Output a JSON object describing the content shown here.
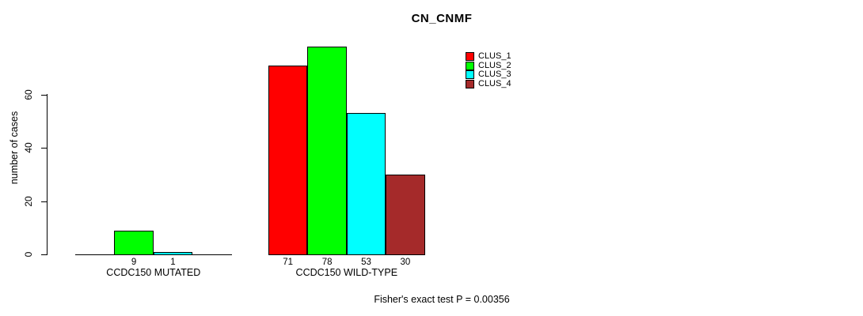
{
  "chart_data": {
    "type": "bar",
    "title": "CN_CNMF",
    "ylabel": "number of cases",
    "xlabel": "",
    "yticks": [
      0,
      20,
      40,
      60
    ],
    "ylim": [
      0,
      80
    ],
    "grid": false,
    "legend_position": "top-right",
    "categories": [
      "CCDC150 MUTATED",
      "CCDC150 WILD-TYPE"
    ],
    "series": [
      {
        "name": "CLUS_1",
        "color": "#FF0000",
        "values": [
          0,
          71
        ]
      },
      {
        "name": "CLUS_2",
        "color": "#00FF00",
        "values": [
          9,
          78
        ]
      },
      {
        "name": "CLUS_3",
        "color": "#00FFFF",
        "values": [
          1,
          53
        ]
      },
      {
        "name": "CLUS_4",
        "color": "#A52A2A",
        "values": [
          0,
          30
        ]
      }
    ],
    "bar_value_labels_shown": [
      "9",
      "1",
      "71",
      "78",
      "53",
      "30"
    ],
    "footer": "Fisher's exact test P = 0.00356"
  }
}
